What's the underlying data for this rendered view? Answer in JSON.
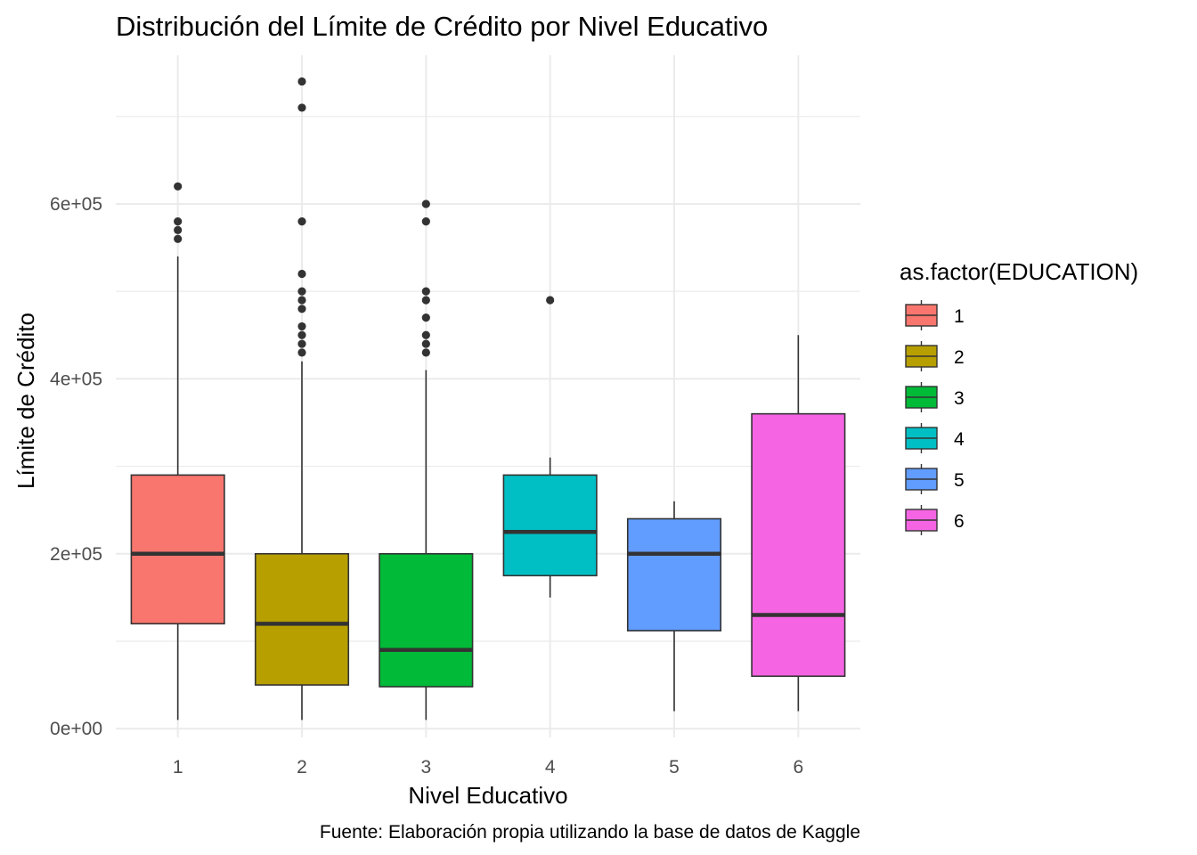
{
  "chart_data": {
    "type": "boxplot",
    "title": "Distribución del Límite de Crédito por Nivel Educativo",
    "xlabel": "Nivel Educativo",
    "ylabel": "Límite de Crédito",
    "caption": "Fuente: Elaboración propia utilizando la base de datos de Kaggle",
    "categories": [
      "1",
      "2",
      "3",
      "4",
      "5",
      "6"
    ],
    "ylim": [
      -10000,
      770000
    ],
    "y_ticks": [
      0,
      200000,
      400000,
      600000
    ],
    "y_tick_labels": [
      "0e+00",
      "2e+05",
      "4e+05",
      "6e+05"
    ],
    "grid": true,
    "legend": {
      "title": "as.factor(EDUCATION)",
      "position": "right",
      "entries": [
        "1",
        "2",
        "3",
        "4",
        "5",
        "6"
      ]
    },
    "series": [
      {
        "name": "1",
        "color": "#F8766D",
        "whisker_low": 10000,
        "q1": 120000,
        "median": 200000,
        "q3": 290000,
        "whisker_high": 540000,
        "outliers": [
          560000,
          570000,
          580000,
          620000
        ]
      },
      {
        "name": "2",
        "color": "#B79F00",
        "whisker_low": 10000,
        "q1": 50000,
        "median": 120000,
        "q3": 200000,
        "whisker_high": 420000,
        "outliers": [
          430000,
          440000,
          450000,
          460000,
          480000,
          490000,
          500000,
          520000,
          580000,
          710000,
          740000
        ]
      },
      {
        "name": "3",
        "color": "#00BA38",
        "whisker_low": 10000,
        "q1": 48000,
        "median": 90000,
        "q3": 200000,
        "whisker_high": 410000,
        "outliers": [
          430000,
          440000,
          450000,
          470000,
          490000,
          500000,
          580000,
          600000
        ]
      },
      {
        "name": "4",
        "color": "#00BFC4",
        "whisker_low": 150000,
        "q1": 175000,
        "median": 225000,
        "q3": 290000,
        "whisker_high": 310000,
        "outliers": [
          490000
        ]
      },
      {
        "name": "5",
        "color": "#619CFF",
        "whisker_low": 20000,
        "q1": 112000,
        "median": 200000,
        "q3": 240000,
        "whisker_high": 260000,
        "outliers": []
      },
      {
        "name": "6",
        "color": "#F564E3",
        "whisker_low": 20000,
        "q1": 60000,
        "median": 130000,
        "q3": 360000,
        "whisker_high": 450000,
        "outliers": []
      }
    ]
  }
}
